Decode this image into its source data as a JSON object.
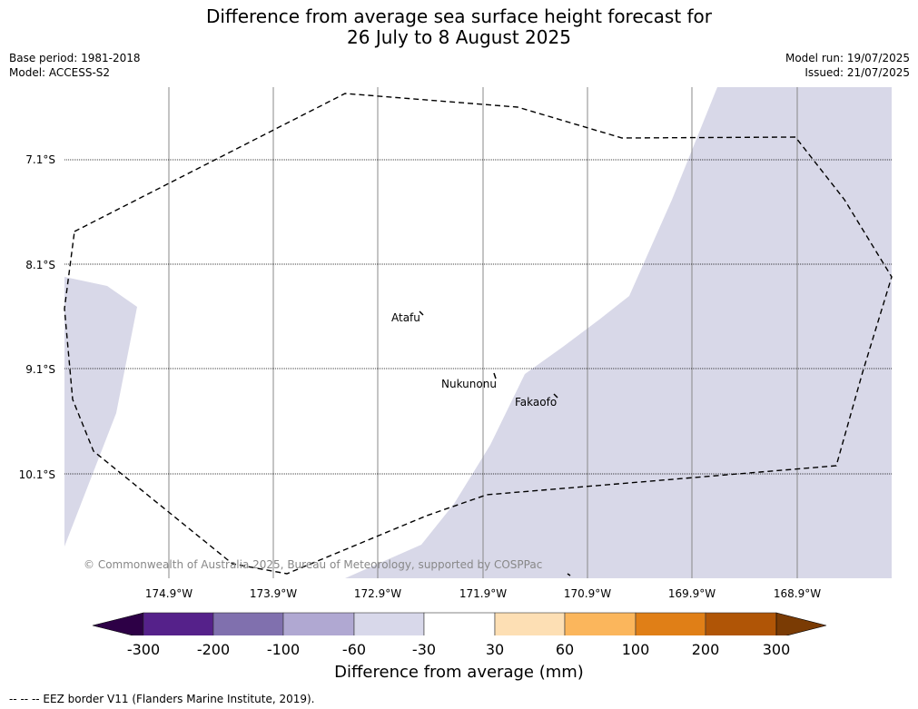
{
  "title": {
    "line1": "Difference from average sea surface height forecast for",
    "line2": "26 July to 8 August 2025"
  },
  "meta_left": {
    "base_period": "Base period: 1981-2018",
    "model": "Model: ACCESS-S2"
  },
  "meta_right": {
    "model_run": "Model run: 19/07/2025",
    "issued": "Issued: 21/07/2025"
  },
  "map": {
    "lat_labels": [
      "7.1°S",
      "8.1°S",
      "9.1°S",
      "10.1°S"
    ],
    "lon_labels": [
      "174.9°W",
      "173.9°W",
      "172.9°W",
      "171.9°W",
      "170.9°W",
      "169.9°W",
      "168.9°W"
    ],
    "places": [
      "Atafu",
      "Nukunonu",
      "Fakaofo"
    ],
    "copyright": "© Commonwealth of Australia 2025, Bureau of Meteorology, supported by COSPPac",
    "land_color": "#ffffff",
    "anomaly_fill_color": "#d8d8e8"
  },
  "colorbar": {
    "ticks": [
      "-300",
      "-200",
      "-100",
      "-60",
      "-30",
      "30",
      "60",
      "100",
      "200",
      "300"
    ],
    "colors": [
      "#2d0046",
      "#55218a",
      "#8070ae",
      "#b0a8d2",
      "#d8d8ea",
      "#ffffff",
      "#fddfb4",
      "#fbb65c",
      "#e07f17",
      "#b05506",
      "#7a3b04"
    ],
    "title": "Difference from average (mm)"
  },
  "footer": "--  --  -- EEZ border V11 (Flanders Marine Institute, 2019)."
}
